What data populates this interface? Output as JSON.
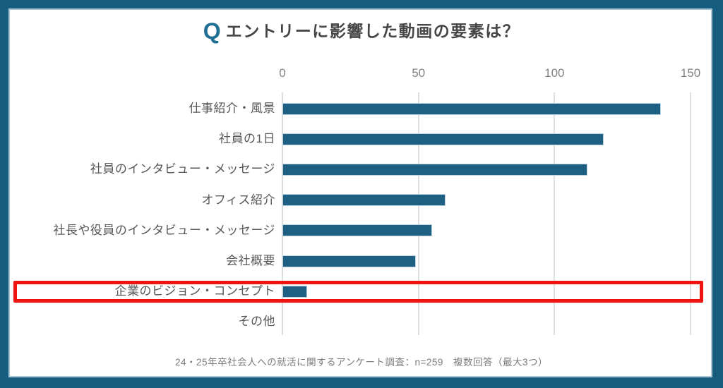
{
  "title": {
    "q_mark": "Q",
    "text": "エントリーに影響した動画の要素は？"
  },
  "footer": {
    "text": "24・25年卒社会人への就活に関するアンケート調査：n=259　複数回答（最大3つ）"
  },
  "chart_data": {
    "type": "bar",
    "orientation": "horizontal",
    "title": "Q エントリーに影響した動画の要素は？",
    "categories": [
      "仕事紹介・風景",
      "社員の1日",
      "社員のインタビュー・メッセージ",
      "オフィス紹介",
      "社長や役員のインタビュー・メッセージ",
      "会社概要",
      "企業のビジョン・コンセプト",
      "その他"
    ],
    "values": [
      139,
      118,
      112,
      60,
      55,
      49,
      9,
      0
    ],
    "x_ticks": [
      0,
      50,
      100,
      150
    ],
    "xlim": [
      0,
      150
    ],
    "grid": true,
    "legend": false,
    "highlight_index": 6,
    "highlight_category": "企業のビジョン・コンセプト",
    "note": "24・25年卒社会人への就活に関するアンケート調査：n=259　複数回答（最大3つ）"
  },
  "colors": {
    "frame": "#175d80",
    "canvas_inner_border": "#a9c6d4",
    "bar": "#1d6083",
    "bar_outline": "#bcd2de",
    "grid": "#dcdfdf",
    "axis_label": "#828282",
    "category_label": "#575757",
    "title_text": "#464646",
    "title_q": "#1f6e94",
    "footer_text": "#7b7b7b",
    "highlight": "#ee1410"
  }
}
